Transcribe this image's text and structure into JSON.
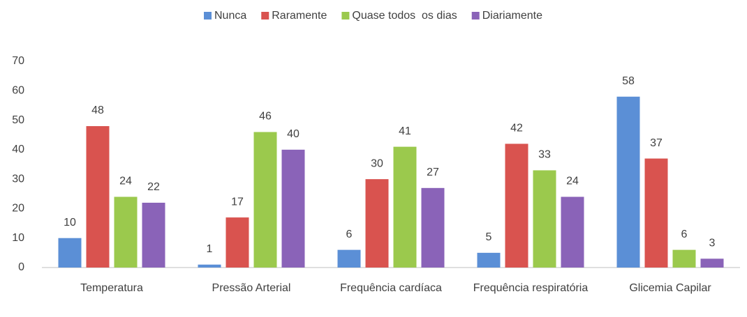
{
  "chart_data": {
    "type": "bar",
    "categories": [
      "Temperatura",
      "Pressão Arterial",
      "Frequência cardíaca",
      "Frequência respiratória",
      "Glicemia Capilar"
    ],
    "series": [
      {
        "name": "Nunca",
        "color": "#5b8fd6",
        "values": [
          10,
          1,
          6,
          5,
          58
        ]
      },
      {
        "name": "Raramente",
        "color": "#d9534f",
        "values": [
          48,
          17,
          30,
          42,
          37
        ]
      },
      {
        "name": "Quase todos  os dias",
        "color": "#9bc94d",
        "values": [
          24,
          46,
          41,
          33,
          6
        ]
      },
      {
        "name": "Diariamente",
        "color": "#8a63b8",
        "values": [
          22,
          40,
          27,
          24,
          3
        ]
      }
    ],
    "ylim": [
      0,
      70
    ],
    "yticks": [
      0,
      10,
      20,
      30,
      40,
      50,
      60,
      70
    ],
    "grid": false,
    "legend": "top"
  }
}
